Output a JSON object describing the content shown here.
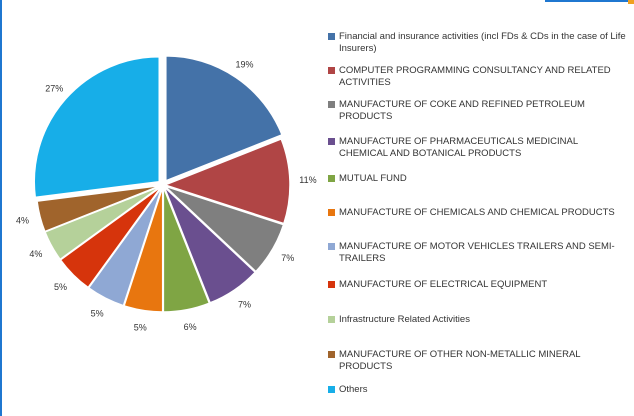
{
  "chart_data": {
    "type": "pie",
    "categories": [
      "Financial and insurance activities (incl FDs & CDs in the case of Life Insurers)",
      "COMPUTER PROGRAMMING  CONSULTANCY AND RELATED ACTIVITIES",
      "MANUFACTURE OF COKE AND REFINED PETROLEUM PRODUCTS",
      "MANUFACTURE OF PHARMACEUTICALS  MEDICINAL CHEMICAL AND BOTANICAL PRODUCTS",
      "MUTUAL FUND",
      "MANUFACTURE OF CHEMICALS AND CHEMICAL PRODUCTS",
      "MANUFACTURE OF MOTOR VEHICLES  TRAILERS AND SEMI-TRAILERS",
      "MANUFACTURE OF ELECTRICAL EQUIPMENT",
      "Infrastructure Related Activities",
      "MANUFACTURE OF OTHER NON-METALLIC MINERAL PRODUCTS",
      "Others"
    ],
    "values": [
      19,
      11,
      7,
      7,
      6,
      5,
      5,
      5,
      4,
      4,
      27
    ],
    "value_labels": [
      "19%",
      "11%",
      "7%",
      "7%",
      "6%",
      "5%",
      "5%",
      "5%",
      "4%",
      "4%",
      "27%"
    ],
    "colors": [
      "#4472a8",
      "#b04545",
      "#7f7f7f",
      "#6a4f8f",
      "#7fa544",
      "#e8760f",
      "#8fa8d4",
      "#d6340c",
      "#b5d19a",
      "#a0642c",
      "#17aee8"
    ],
    "legend": "right"
  }
}
